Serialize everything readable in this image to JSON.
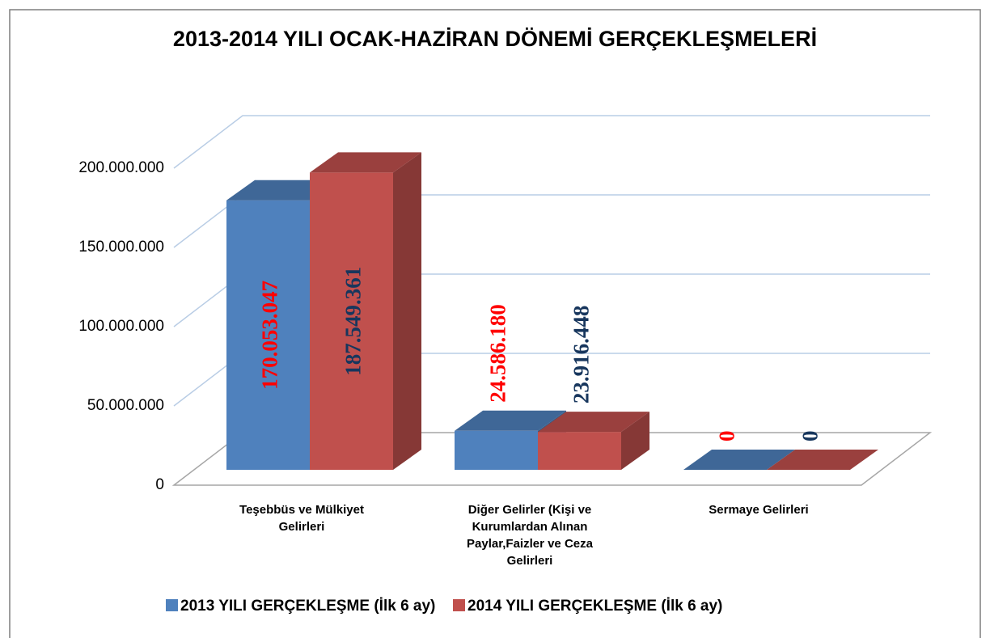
{
  "chart_data": {
    "type": "bar3d",
    "title": "2013-2014 YILI OCAK-HAZİRAN DÖNEMİ GERÇEKLEŞMELERİ",
    "categories": [
      "Teşebbüs ve Mülkiyet Gelirleri",
      "Diğer Gelirler (Kişi ve Kurumlardan Alınan Paylar,Faizler ve Ceza Gelirleri",
      "Sermaye Gelirleri"
    ],
    "series": [
      {
        "name": "2013 YILI GERÇEKLEŞME (İlk 6 ay)",
        "color": "#4f81bd",
        "label_color": "#ff0000",
        "values": [
          170053047,
          24586180,
          0
        ],
        "value_labels": [
          "170.053.047",
          "24.586.180",
          "0"
        ]
      },
      {
        "name": "2014 YILI GERÇEKLEŞME (İlk 6 ay)",
        "color": "#c0504d",
        "label_color": "#17365d",
        "values": [
          187549361,
          23916448,
          0
        ],
        "value_labels": [
          "187.549.361",
          "23.916.448",
          "0"
        ]
      }
    ],
    "ylim": [
      0,
      200000000
    ],
    "yticks": [
      0,
      {
        "value": 50000000,
        "label": "50.000.000"
      },
      {
        "value": 100000000,
        "label": "100.000.000"
      },
      {
        "value": 150000000,
        "label": "150.000.000"
      },
      {
        "value": 200000000,
        "label": "200.000.000"
      }
    ],
    "grid": true,
    "legend": "bottom"
  }
}
